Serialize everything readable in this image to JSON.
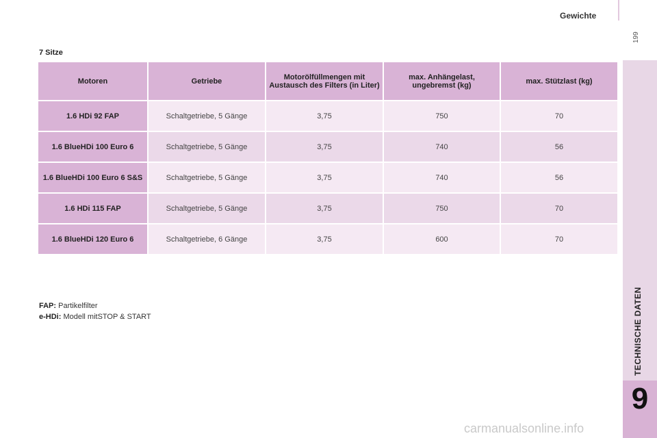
{
  "header": {
    "title": "Gewichte",
    "page_number": "199"
  },
  "sidebar": {
    "label": "TECHNISCHE DATEN",
    "chapter": "9"
  },
  "section": {
    "title": "7 Sitze"
  },
  "table": {
    "headers": [
      "Motoren",
      "Getriebe",
      "Motorölfüllmengen mit Austausch des Filters (in Liter)",
      "max. Anhängelast, ungebremst (kg)",
      "max. Stützlast (kg)"
    ],
    "rows": [
      [
        "1.6 HDi 92 FAP",
        "Schaltgetriebe, 5 Gänge",
        "3,75",
        "750",
        "70"
      ],
      [
        "1.6 BlueHDi 100 Euro 6",
        "Schaltgetriebe, 5 Gänge",
        "3,75",
        "740",
        "56"
      ],
      [
        "1.6 BlueHDi 100 Euro 6 S&S",
        "Schaltgetriebe, 5 Gänge",
        "3,75",
        "740",
        "56"
      ],
      [
        "1.6 HDi 115 FAP",
        "Schaltgetriebe, 5 Gänge",
        "3,75",
        "750",
        "70"
      ],
      [
        "1.6 BlueHDi 120 Euro 6",
        "Schaltgetriebe, 6 Gänge",
        "3,75",
        "600",
        "70"
      ]
    ]
  },
  "legend": [
    {
      "term": "FAP:",
      "text": "Partikelfilter"
    },
    {
      "term": "e-HDi:",
      "text": "Modell mitSTOP & START"
    }
  ],
  "watermark": "carmanualsonline.info"
}
